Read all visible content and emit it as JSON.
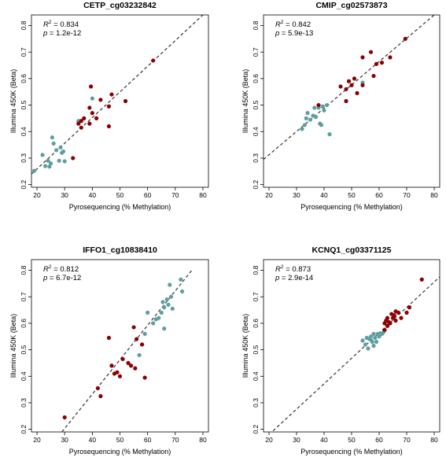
{
  "colors": {
    "red": "#8b0000",
    "teal": "#5f9ea0",
    "axis": "#000000",
    "fit_line": "#333333"
  },
  "chart_data": [
    {
      "type": "scatter",
      "title": "CETP_cg03232842",
      "xlabel": "Pyrosequencing (% Methylation)",
      "ylabel": "Illumina 450K (Beta)",
      "xlim": [
        18,
        82
      ],
      "ylim": [
        0.19,
        0.84
      ],
      "xticks": [
        20,
        30,
        40,
        50,
        60,
        70,
        80
      ],
      "yticks": [
        0.2,
        0.3,
        0.4,
        0.5,
        0.6,
        0.7,
        0.8
      ],
      "stats": {
        "r2_label": "R",
        "r2_sup": "2",
        "r2": "= 0.834",
        "p_label": "p",
        "p": "= 1.2e-12"
      },
      "fit_line": {
        "x": [
          18,
          80
        ],
        "y": [
          0.24,
          0.84
        ]
      },
      "series": [
        {
          "color": "teal",
          "points": [
            [
              19,
              0.252
            ],
            [
              22,
              0.312
            ],
            [
              23,
              0.27
            ],
            [
              24,
              0.29
            ],
            [
              24.5,
              0.268
            ],
            [
              25,
              0.28
            ],
            [
              25.5,
              0.378
            ],
            [
              26,
              0.355
            ],
            [
              27,
              0.33
            ],
            [
              28,
              0.29
            ],
            [
              28.5,
              0.34
            ],
            [
              29,
              0.32
            ],
            [
              29.5,
              0.325
            ],
            [
              30,
              0.288
            ],
            [
              35,
              0.44
            ],
            [
              40,
              0.525
            ]
          ]
        },
        {
          "color": "red",
          "points": [
            [
              33,
              0.3
            ],
            [
              35,
              0.43
            ],
            [
              36,
              0.415
            ],
            [
              36,
              0.44
            ],
            [
              37,
              0.45
            ],
            [
              39,
              0.43
            ],
            [
              39,
              0.49
            ],
            [
              39.5,
              0.57
            ],
            [
              40,
              0.47
            ],
            [
              41.5,
              0.45
            ],
            [
              43,
              0.52
            ],
            [
              46,
              0.42
            ],
            [
              46,
              0.495
            ],
            [
              47,
              0.54
            ],
            [
              52,
              0.515
            ],
            [
              62,
              0.668
            ]
          ]
        }
      ]
    },
    {
      "type": "scatter",
      "title": "CMIP_cg02573873",
      "xlabel": "Pyrosequencing (% Methylation)",
      "ylabel": "Illumina 450K (Beta)",
      "xlim": [
        18,
        82
      ],
      "ylim": [
        0.19,
        0.84
      ],
      "xticks": [
        20,
        30,
        40,
        50,
        60,
        70,
        80
      ],
      "yticks": [
        0.2,
        0.3,
        0.4,
        0.5,
        0.6,
        0.7,
        0.8
      ],
      "stats": {
        "r2_label": "R",
        "r2_sup": "2",
        "r2": "= 0.842",
        "p_label": "p",
        "p": "= 5.9e-13"
      },
      "fit_line": {
        "x": [
          18,
          80
        ],
        "y": [
          0.295,
          0.84
        ]
      },
      "series": [
        {
          "color": "teal",
          "points": [
            [
              32,
              0.41
            ],
            [
              33,
              0.425
            ],
            [
              33.5,
              0.45
            ],
            [
              34,
              0.47
            ],
            [
              35,
              0.445
            ],
            [
              36,
              0.46
            ],
            [
              36.5,
              0.49
            ],
            [
              37,
              0.455
            ],
            [
              38,
              0.49
            ],
            [
              38.5,
              0.43
            ],
            [
              39,
              0.425
            ],
            [
              39.5,
              0.495
            ],
            [
              40,
              0.48
            ],
            [
              41,
              0.5
            ],
            [
              42,
              0.39
            ],
            [
              54,
              0.585
            ]
          ]
        },
        {
          "color": "red",
          "points": [
            [
              38,
              0.5
            ],
            [
              46,
              0.57
            ],
            [
              48,
              0.515
            ],
            [
              48,
              0.56
            ],
            [
              49,
              0.59
            ],
            [
              50,
              0.575
            ],
            [
              51,
              0.6
            ],
            [
              52,
              0.545
            ],
            [
              54,
              0.575
            ],
            [
              54,
              0.68
            ],
            [
              57,
              0.7
            ],
            [
              58,
              0.61
            ],
            [
              59,
              0.655
            ],
            [
              61,
              0.66
            ],
            [
              64,
              0.68
            ],
            [
              69.5,
              0.75
            ]
          ]
        }
      ]
    },
    {
      "type": "scatter",
      "title": "IFFO1_cg10838410",
      "xlabel": "Pyrosequencing (% Methylation)",
      "ylabel": "Illumina 450K (Beta)",
      "xlim": [
        18,
        82
      ],
      "ylim": [
        0.19,
        0.84
      ],
      "xticks": [
        20,
        30,
        40,
        50,
        60,
        70,
        80
      ],
      "yticks": [
        0.2,
        0.3,
        0.4,
        0.5,
        0.6,
        0.7,
        0.8
      ],
      "stats": {
        "r2_label": "R",
        "r2_sup": "2",
        "r2": "= 0.812",
        "p_label": "p",
        "p": "= 6.7e-12"
      },
      "fit_line": {
        "x": [
          29,
          76
        ],
        "y": [
          0.19,
          0.8
        ]
      },
      "series": [
        {
          "color": "teal",
          "points": [
            [
              57,
              0.48
            ],
            [
              58,
              0.52
            ],
            [
              59,
              0.56
            ],
            [
              60,
              0.64
            ],
            [
              62,
              0.6
            ],
            [
              63,
              0.615
            ],
            [
              64,
              0.62
            ],
            [
              65,
              0.64
            ],
            [
              65.5,
              0.68
            ],
            [
              66,
              0.58
            ],
            [
              66,
              0.66
            ],
            [
              67,
              0.69
            ],
            [
              67.5,
              0.67
            ],
            [
              68,
              0.745
            ],
            [
              68.5,
              0.7
            ],
            [
              69,
              0.655
            ],
            [
              72,
              0.765
            ],
            [
              72.5,
              0.72
            ]
          ]
        },
        {
          "color": "red",
          "points": [
            [
              30,
              0.245
            ],
            [
              42,
              0.355
            ],
            [
              43,
              0.325
            ],
            [
              46,
              0.545
            ],
            [
              47,
              0.44
            ],
            [
              48,
              0.41
            ],
            [
              49,
              0.415
            ],
            [
              50,
              0.4
            ],
            [
              51,
              0.465
            ],
            [
              53,
              0.45
            ],
            [
              54,
              0.44
            ],
            [
              55,
              0.585
            ],
            [
              55.5,
              0.43
            ],
            [
              56,
              0.54
            ],
            [
              58,
              0.52
            ],
            [
              59,
              0.395
            ]
          ]
        }
      ]
    },
    {
      "type": "scatter",
      "title": "KCNQ1_cg03371125",
      "xlabel": "Pyrosequencing (% Methylation)",
      "ylabel": "Illumina 450K (Beta)",
      "xlim": [
        18,
        82
      ],
      "ylim": [
        0.19,
        0.84
      ],
      "xticks": [
        20,
        30,
        40,
        50,
        60,
        70,
        80
      ],
      "yticks": [
        0.2,
        0.3,
        0.4,
        0.5,
        0.6,
        0.7,
        0.8
      ],
      "stats": {
        "r2_label": "R",
        "r2_sup": "2",
        "r2": "= 0.873",
        "p_label": "p",
        "p": "= 2.9e-14"
      },
      "fit_line": {
        "x": [
          20,
          82
        ],
        "y": [
          0.18,
          0.775
        ]
      },
      "series": [
        {
          "color": "teal",
          "points": [
            [
              54,
              0.535
            ],
            [
              55,
              0.52
            ],
            [
              55.5,
              0.545
            ],
            [
              56,
              0.505
            ],
            [
              56.5,
              0.54
            ],
            [
              57,
              0.55
            ],
            [
              57.5,
              0.53
            ],
            [
              58,
              0.515
            ],
            [
              58,
              0.56
            ],
            [
              58.5,
              0.545
            ],
            [
              59,
              0.53
            ],
            [
              59.5,
              0.56
            ],
            [
              60,
              0.55
            ],
            [
              61,
              0.56
            ],
            [
              61.5,
              0.565
            ]
          ]
        },
        {
          "color": "red",
          "points": [
            [
              62,
              0.575
            ],
            [
              62,
              0.6
            ],
            [
              62.5,
              0.61
            ],
            [
              63,
              0.59
            ],
            [
              63,
              0.62
            ],
            [
              63.5,
              0.605
            ],
            [
              64,
              0.6
            ],
            [
              64.5,
              0.635
            ],
            [
              65,
              0.62
            ],
            [
              65.5,
              0.63
            ],
            [
              66,
              0.61
            ],
            [
              66,
              0.645
            ],
            [
              67,
              0.64
            ],
            [
              68,
              0.62
            ],
            [
              70,
              0.64
            ],
            [
              71,
              0.66
            ],
            [
              75.5,
              0.765
            ]
          ]
        }
      ]
    }
  ]
}
